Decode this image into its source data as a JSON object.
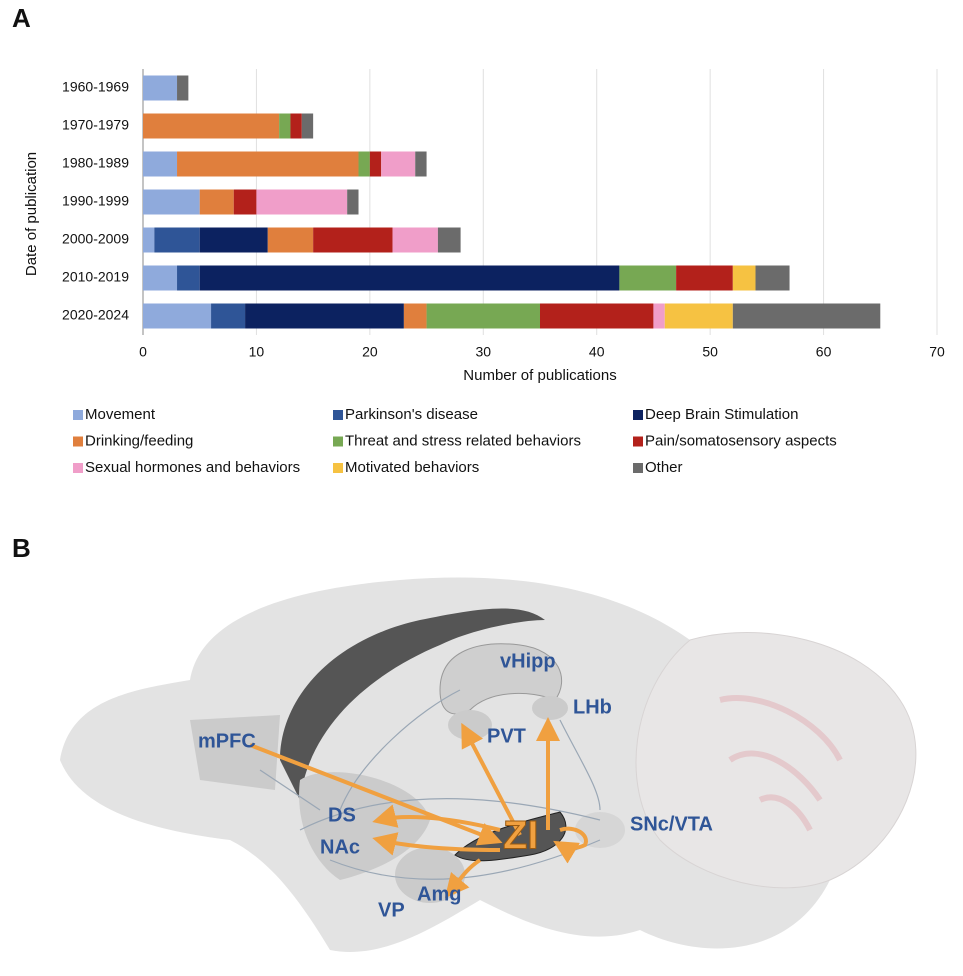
{
  "chart_data": {
    "type": "stacked-bar-horizontal",
    "xlabel": "Number of publications",
    "ylabel": "Date of publication",
    "categories": [
      "1960-1969",
      "1970-1979",
      "1980-1989",
      "1990-1999",
      "2000-2009",
      "2010-2019",
      "2020-2024"
    ],
    "series": [
      {
        "name": "Movement",
        "color": "#8faadc",
        "values": [
          3,
          0,
          3,
          5,
          1,
          3,
          6
        ]
      },
      {
        "name": "Parkinson's disease",
        "color": "#2f5597",
        "values": [
          0,
          0,
          0,
          0,
          4,
          2,
          3
        ]
      },
      {
        "name": "Deep Brain Stimulation",
        "color": "#0c2260",
        "values": [
          0,
          0,
          0,
          0,
          6,
          37,
          14
        ]
      },
      {
        "name": "Drinking/feeding",
        "color": "#e07f3d",
        "values": [
          0,
          12,
          16,
          3,
          4,
          0,
          2
        ]
      },
      {
        "name": "Threat and stress related behaviors",
        "color": "#77a853",
        "values": [
          0,
          1,
          1,
          0,
          0,
          5,
          10
        ]
      },
      {
        "name": "Pain/somatosensory aspects",
        "color": "#b3211b",
        "values": [
          0,
          1,
          1,
          2,
          7,
          5,
          10
        ]
      },
      {
        "name": "Sexual hormones and behaviors",
        "color": "#f09ec9",
        "values": [
          0,
          0,
          3,
          8,
          4,
          0,
          1
        ]
      },
      {
        "name": "Motivated behaviors",
        "color": "#f6c242",
        "values": [
          0,
          0,
          0,
          0,
          0,
          2,
          6
        ]
      },
      {
        "name": "Other",
        "color": "#6b6b6b",
        "values": [
          1,
          1,
          1,
          1,
          2,
          3,
          13
        ]
      }
    ],
    "xlim": [
      0,
      70
    ],
    "xticks": [
      0,
      10,
      20,
      30,
      40,
      50,
      60,
      70
    ],
    "grid": true
  },
  "diagram": {
    "panel_labels": [
      "A",
      "B"
    ],
    "nodes": [
      {
        "label": "vHipp"
      },
      {
        "label": "LHb"
      },
      {
        "label": "PVT"
      },
      {
        "label": "mPFC"
      },
      {
        "label": "DS"
      },
      {
        "label": "NAc"
      },
      {
        "label": "ZI"
      },
      {
        "label": "SNc/VTA"
      },
      {
        "label": "VP"
      },
      {
        "label": "Amg"
      }
    ]
  }
}
